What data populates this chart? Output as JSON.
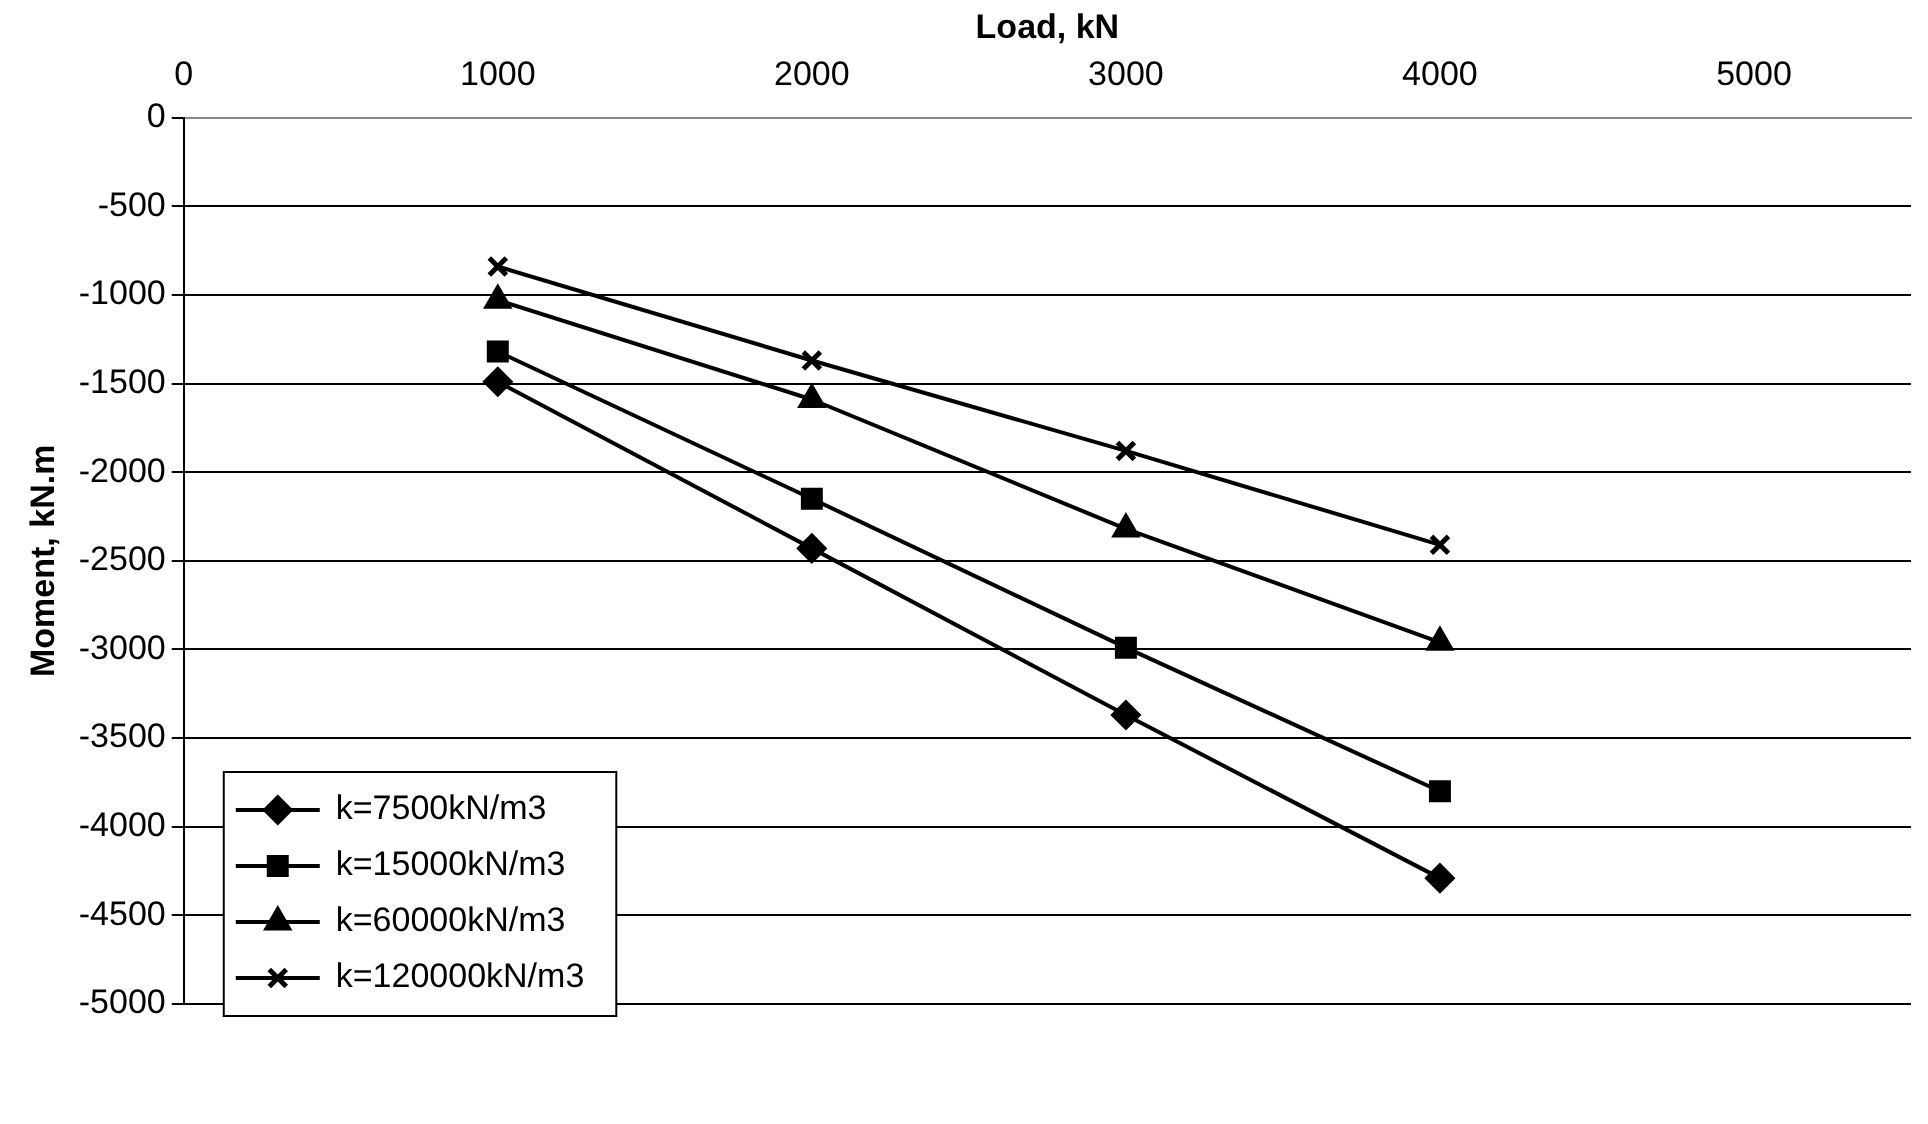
{
  "chart_data": {
    "type": "line",
    "xlabel": "Load, kN",
    "ylabel": "Moment, kN.m",
    "xlim": [
      0,
      5500
    ],
    "xticks": [
      0,
      1000,
      2000,
      3000,
      4000,
      5000
    ],
    "ylim": [
      -5000,
      0
    ],
    "yticks": [
      0,
      -500,
      -1000,
      -1500,
      -2000,
      -2500,
      -3000,
      -3500,
      -4000,
      -4500,
      -5000
    ],
    "grid": "y",
    "legend": "bottom left",
    "line_style": "solid",
    "x": [
      1000,
      2000,
      3000,
      4000
    ],
    "series": [
      {
        "name": "k=7500kN/m3",
        "color": "#000000",
        "marker": "diamond",
        "values": [
          -1490,
          -2430,
          -3370,
          -4290
        ]
      },
      {
        "name": "k=15000kN/m3",
        "color": "#000000",
        "marker": "square",
        "values": [
          -1320,
          -2150,
          -2990,
          -3800
        ]
      },
      {
        "name": "k=60000kN/m3",
        "color": "#000000",
        "marker": "triangle",
        "values": [
          -1030,
          -1590,
          -2320,
          -2960
        ]
      },
      {
        "name": "k=120000kN/m3",
        "color": "#000000",
        "marker": "cross",
        "values": [
          -840,
          -1370,
          -1880,
          -2410
        ]
      }
    ]
  }
}
